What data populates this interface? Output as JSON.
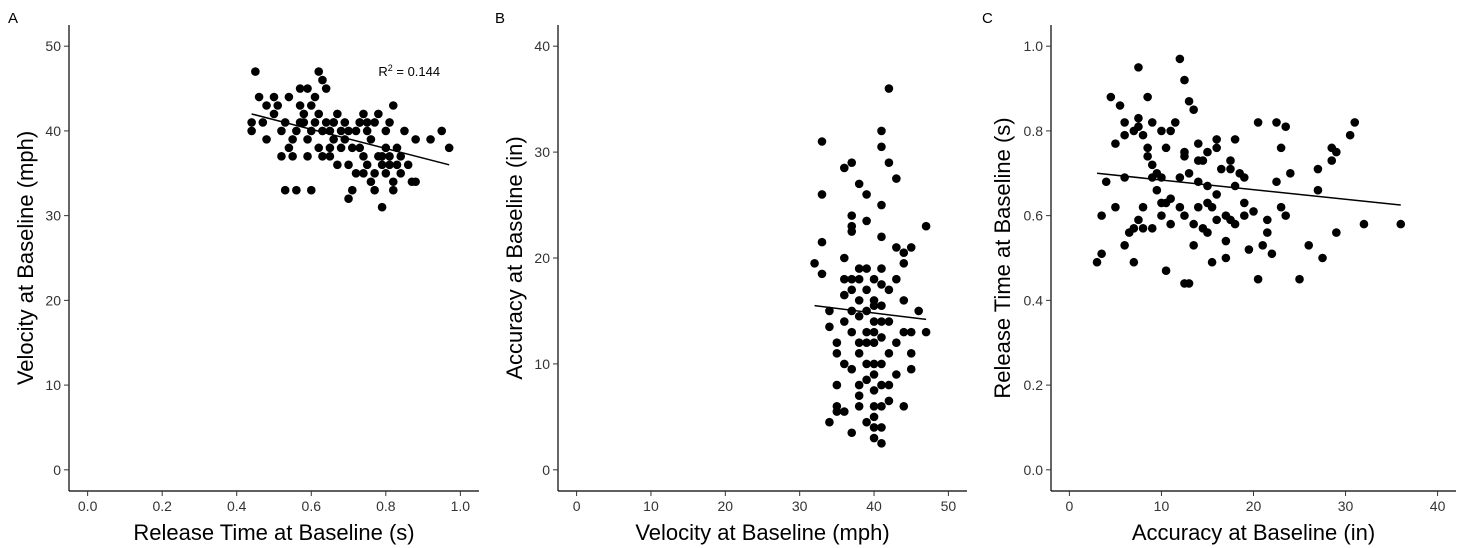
{
  "chart_data": [
    {
      "panel": "A",
      "type": "scatter",
      "xlabel": "Release Time at Baseline (s)",
      "ylabel": "Velocity at Baseline (mph)",
      "xlim": [
        0.0,
        1.0
      ],
      "ylim": [
        0,
        50
      ],
      "xticks": [
        "0.0",
        "0.2",
        "0.4",
        "0.6",
        "0.8",
        "1.0"
      ],
      "yticks": [
        "0",
        "10",
        "20",
        "30",
        "40",
        "50"
      ],
      "annotation": {
        "base": "R",
        "sup": "2",
        "text": " = 0.144",
        "x": 0.78,
        "y": 46.5
      },
      "fit_line": {
        "x": [
          0.44,
          0.97
        ],
        "y": [
          42.0,
          36.0
        ]
      },
      "points": [
        [
          0.45,
          47
        ],
        [
          0.46,
          44
        ],
        [
          0.44,
          41
        ],
        [
          0.44,
          40
        ],
        [
          0.47,
          41
        ],
        [
          0.48,
          39
        ],
        [
          0.5,
          44
        ],
        [
          0.5,
          42
        ],
        [
          0.51,
          43
        ],
        [
          0.52,
          40
        ],
        [
          0.53,
          41
        ],
        [
          0.54,
          44
        ],
        [
          0.54,
          38
        ],
        [
          0.55,
          37
        ],
        [
          0.52,
          37
        ],
        [
          0.53,
          33
        ],
        [
          0.56,
          40
        ],
        [
          0.57,
          43
        ],
        [
          0.57,
          45
        ],
        [
          0.58,
          42
        ],
        [
          0.58,
          41
        ],
        [
          0.59,
          39
        ],
        [
          0.59,
          45
        ],
        [
          0.6,
          43
        ],
        [
          0.6,
          40
        ],
        [
          0.61,
          44
        ],
        [
          0.61,
          41
        ],
        [
          0.62,
          47
        ],
        [
          0.62,
          38
        ],
        [
          0.63,
          46
        ],
        [
          0.63,
          40
        ],
        [
          0.64,
          45
        ],
        [
          0.64,
          41
        ],
        [
          0.65,
          40
        ],
        [
          0.65,
          37
        ],
        [
          0.66,
          39
        ],
        [
          0.66,
          41
        ],
        [
          0.67,
          42
        ],
        [
          0.68,
          40
        ],
        [
          0.68,
          38
        ],
        [
          0.69,
          41
        ],
        [
          0.69,
          39
        ],
        [
          0.7,
          36
        ],
        [
          0.7,
          32
        ],
        [
          0.71,
          38
        ],
        [
          0.71,
          33
        ],
        [
          0.72,
          40
        ],
        [
          0.72,
          35
        ],
        [
          0.73,
          41
        ],
        [
          0.73,
          38
        ],
        [
          0.74,
          37
        ],
        [
          0.74,
          42
        ],
        [
          0.75,
          36
        ],
        [
          0.75,
          40
        ],
        [
          0.76,
          34
        ],
        [
          0.76,
          39
        ],
        [
          0.77,
          41
        ],
        [
          0.77,
          35
        ],
        [
          0.78,
          37
        ],
        [
          0.78,
          42
        ],
        [
          0.79,
          36
        ],
        [
          0.79,
          31
        ],
        [
          0.8,
          38
        ],
        [
          0.8,
          35
        ],
        [
          0.81,
          41
        ],
        [
          0.81,
          37
        ],
        [
          0.82,
          43
        ],
        [
          0.82,
          34
        ],
        [
          0.83,
          36
        ],
        [
          0.83,
          38
        ],
        [
          0.84,
          37
        ],
        [
          0.84,
          35
        ],
        [
          0.85,
          40
        ],
        [
          0.86,
          36
        ],
        [
          0.87,
          34
        ],
        [
          0.88,
          34
        ],
        [
          0.88,
          39
        ],
        [
          0.92,
          39
        ],
        [
          0.95,
          40
        ],
        [
          0.97,
          38
        ],
        [
          0.56,
          33
        ],
        [
          0.59,
          37
        ],
        [
          0.62,
          42
        ],
        [
          0.66,
          41
        ],
        [
          0.74,
          35
        ],
        [
          0.77,
          33
        ],
        [
          0.8,
          40
        ],
        [
          0.82,
          33
        ],
        [
          0.6,
          33
        ],
        [
          0.55,
          39
        ],
        [
          0.65,
          38
        ],
        [
          0.7,
          40
        ],
        [
          0.75,
          41
        ],
        [
          0.79,
          37
        ],
        [
          0.81,
          36
        ],
        [
          0.48,
          43
        ],
        [
          0.57,
          41
        ],
        [
          0.63,
          37
        ],
        [
          0.67,
          36
        ],
        [
          0.73,
          41
        ]
      ]
    },
    {
      "panel": "B",
      "type": "scatter",
      "xlabel": "Velocity at Baseline (mph)",
      "ylabel": "Accuracy at Baseline (in)",
      "xlim": [
        0,
        50
      ],
      "ylim": [
        0,
        40
      ],
      "xticks": [
        "0",
        "10",
        "20",
        "30",
        "40",
        "50"
      ],
      "yticks": [
        "0",
        "10",
        "20",
        "30",
        "40"
      ],
      "fit_line": {
        "x": [
          32,
          47
        ],
        "y": [
          15.5,
          14.2
        ]
      },
      "points": [
        [
          32,
          19.5
        ],
        [
          33,
          31
        ],
        [
          33,
          26
        ],
        [
          33,
          21.5
        ],
        [
          33,
          18.5
        ],
        [
          34,
          15
        ],
        [
          34,
          13.5
        ],
        [
          34,
          4.5
        ],
        [
          35,
          12
        ],
        [
          35,
          11
        ],
        [
          35,
          8
        ],
        [
          35,
          6
        ],
        [
          35,
          5.5
        ],
        [
          36,
          20
        ],
        [
          36,
          18
        ],
        [
          36,
          16.5
        ],
        [
          36,
          14
        ],
        [
          36,
          10
        ],
        [
          36,
          5.5
        ],
        [
          36,
          28.5
        ],
        [
          37,
          29
        ],
        [
          37,
          24
        ],
        [
          37,
          23
        ],
        [
          37,
          22.5
        ],
        [
          37,
          18
        ],
        [
          37,
          17
        ],
        [
          37,
          15
        ],
        [
          37,
          13
        ],
        [
          37,
          9.5
        ],
        [
          37,
          3.5
        ],
        [
          38,
          19
        ],
        [
          38,
          16
        ],
        [
          38,
          14.5
        ],
        [
          38,
          12
        ],
        [
          38,
          11
        ],
        [
          38,
          8
        ],
        [
          38,
          7
        ],
        [
          38,
          6
        ],
        [
          38,
          18
        ],
        [
          38,
          27
        ],
        [
          39,
          26
        ],
        [
          39,
          23.5
        ],
        [
          39,
          19
        ],
        [
          39,
          17
        ],
        [
          39,
          15
        ],
        [
          39,
          13
        ],
        [
          39,
          12
        ],
        [
          39,
          10
        ],
        [
          39,
          8.5
        ],
        [
          39,
          4.5
        ],
        [
          40,
          18
        ],
        [
          40,
          16
        ],
        [
          40,
          15.5
        ],
        [
          40,
          14
        ],
        [
          40,
          13
        ],
        [
          40,
          12
        ],
        [
          40,
          10
        ],
        [
          40,
          9
        ],
        [
          40,
          7.5
        ],
        [
          40,
          6
        ],
        [
          40,
          5
        ],
        [
          40,
          3
        ],
        [
          40,
          4
        ],
        [
          41,
          32
        ],
        [
          41,
          30.5
        ],
        [
          41,
          25
        ],
        [
          41,
          22
        ],
        [
          41,
          19
        ],
        [
          41,
          17.5
        ],
        [
          41,
          15.5
        ],
        [
          41,
          14
        ],
        [
          41,
          12.5
        ],
        [
          41,
          10
        ],
        [
          41,
          8
        ],
        [
          41,
          6
        ],
        [
          41,
          4
        ],
        [
          41,
          2.5
        ],
        [
          42,
          36
        ],
        [
          42,
          29
        ],
        [
          42,
          17
        ],
        [
          42,
          14
        ],
        [
          42,
          11
        ],
        [
          42,
          8
        ],
        [
          42,
          6.5
        ],
        [
          43,
          27.5
        ],
        [
          43,
          21
        ],
        [
          43,
          18
        ],
        [
          43,
          12
        ],
        [
          43,
          9
        ],
        [
          44,
          20.5
        ],
        [
          44,
          19.5
        ],
        [
          44,
          16
        ],
        [
          44,
          13
        ],
        [
          44,
          6
        ],
        [
          45,
          21
        ],
        [
          45,
          11
        ],
        [
          45,
          9.5
        ],
        [
          45,
          13
        ],
        [
          46,
          15
        ],
        [
          47,
          23
        ],
        [
          47,
          13
        ]
      ]
    },
    {
      "panel": "C",
      "type": "scatter",
      "xlabel": "Accuracy at Baseline (in)",
      "ylabel": "Release Time at Baseline (s)",
      "xlim": [
        0,
        40
      ],
      "ylim": [
        0.0,
        1.0
      ],
      "xticks": [
        "0",
        "10",
        "20",
        "30",
        "40"
      ],
      "yticks": [
        "0.0",
        "0.2",
        "0.4",
        "0.6",
        "0.8",
        "1.0"
      ],
      "fit_line": {
        "x": [
          3,
          36
        ],
        "y": [
          0.7,
          0.625
        ]
      },
      "points": [
        [
          3,
          0.49
        ],
        [
          3.5,
          0.6
        ],
        [
          3.5,
          0.51
        ],
        [
          4,
          0.68
        ],
        [
          4.5,
          0.88
        ],
        [
          5,
          0.77
        ],
        [
          5,
          0.62
        ],
        [
          5.5,
          0.86
        ],
        [
          6,
          0.79
        ],
        [
          6,
          0.82
        ],
        [
          6,
          0.69
        ],
        [
          6,
          0.53
        ],
        [
          6.5,
          0.56
        ],
        [
          7,
          0.8
        ],
        [
          7,
          0.57
        ],
        [
          7,
          0.49
        ],
        [
          7.5,
          0.95
        ],
        [
          7.5,
          0.83
        ],
        [
          7.5,
          0.81
        ],
        [
          7.5,
          0.59
        ],
        [
          8,
          0.79
        ],
        [
          8,
          0.62
        ],
        [
          8,
          0.57
        ],
        [
          8.5,
          0.88
        ],
        [
          8.5,
          0.76
        ],
        [
          8.5,
          0.74
        ],
        [
          9,
          0.82
        ],
        [
          9,
          0.72
        ],
        [
          9,
          0.69
        ],
        [
          9,
          0.57
        ],
        [
          9.5,
          0.66
        ],
        [
          9.5,
          0.7
        ],
        [
          10,
          0.8
        ],
        [
          10,
          0.69
        ],
        [
          10,
          0.63
        ],
        [
          10,
          0.6
        ],
        [
          10.5,
          0.76
        ],
        [
          10.5,
          0.63
        ],
        [
          10.5,
          0.47
        ],
        [
          11,
          0.58
        ],
        [
          11,
          0.8
        ],
        [
          11.5,
          0.82
        ],
        [
          12,
          0.97
        ],
        [
          12,
          0.69
        ],
        [
          12,
          0.62
        ],
        [
          12.5,
          0.92
        ],
        [
          12.5,
          0.75
        ],
        [
          12.5,
          0.74
        ],
        [
          12.5,
          0.6
        ],
        [
          12.5,
          0.44
        ],
        [
          13,
          0.87
        ],
        [
          13,
          0.7
        ],
        [
          13,
          0.44
        ],
        [
          13.5,
          0.85
        ],
        [
          13.5,
          0.58
        ],
        [
          13.5,
          0.53
        ],
        [
          14,
          0.77
        ],
        [
          14,
          0.73
        ],
        [
          14,
          0.68
        ],
        [
          14,
          0.62
        ],
        [
          14.5,
          0.73
        ],
        [
          15,
          0.75
        ],
        [
          15,
          0.67
        ],
        [
          15,
          0.63
        ],
        [
          15,
          0.56
        ],
        [
          15.5,
          0.62
        ],
        [
          15.5,
          0.49
        ],
        [
          16,
          0.76
        ],
        [
          16,
          0.65
        ],
        [
          16,
          0.59
        ],
        [
          16.5,
          0.71
        ],
        [
          17,
          0.6
        ],
        [
          17,
          0.54
        ],
        [
          17,
          0.5
        ],
        [
          17.5,
          0.73
        ],
        [
          17.5,
          0.71
        ],
        [
          17.5,
          0.59
        ],
        [
          18,
          0.78
        ],
        [
          18,
          0.67
        ],
        [
          18,
          0.58
        ],
        [
          18.5,
          0.7
        ],
        [
          19,
          0.69
        ],
        [
          19,
          0.63
        ],
        [
          19,
          0.6
        ],
        [
          19.5,
          0.52
        ],
        [
          20,
          0.61
        ],
        [
          20.5,
          0.82
        ],
        [
          20.5,
          0.45
        ],
        [
          21,
          0.53
        ],
        [
          21.5,
          0.59
        ],
        [
          21.5,
          0.56
        ],
        [
          22,
          0.51
        ],
        [
          22.5,
          0.82
        ],
        [
          22.5,
          0.68
        ],
        [
          23,
          0.76
        ],
        [
          23,
          0.62
        ],
        [
          23.5,
          0.81
        ],
        [
          23.5,
          0.6
        ],
        [
          24,
          0.7
        ],
        [
          25,
          0.45
        ],
        [
          26,
          0.53
        ],
        [
          27,
          0.71
        ],
        [
          27,
          0.66
        ],
        [
          27.5,
          0.5
        ],
        [
          28.5,
          0.76
        ],
        [
          28.5,
          0.73
        ],
        [
          29,
          0.56
        ],
        [
          29,
          0.75
        ],
        [
          30.5,
          0.79
        ],
        [
          31,
          0.82
        ],
        [
          32,
          0.58
        ],
        [
          36,
          0.58
        ],
        [
          16,
          0.78
        ],
        [
          11,
          0.64
        ],
        [
          14.5,
          0.57
        ]
      ]
    }
  ]
}
